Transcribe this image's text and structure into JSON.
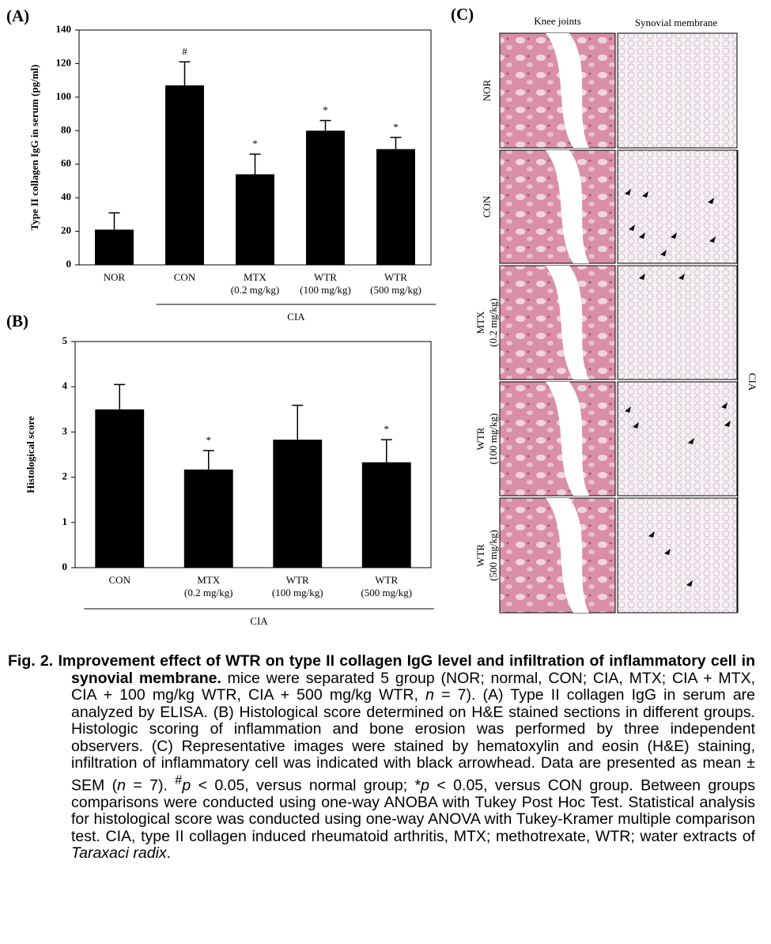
{
  "chart_data": [
    {
      "type": "bar",
      "panel": "(A)",
      "ylabel": "Type II collagen IgG in serum (pg/ml)",
      "categories": [
        [
          "NOR"
        ],
        [
          "CON"
        ],
        [
          "MTX",
          "(0.2 mg/kg)"
        ],
        [
          "WTR",
          "(100 mg/kg)"
        ],
        [
          "WTR",
          "(500 mg/kg)"
        ]
      ],
      "values": [
        21,
        107,
        54,
        80,
        69
      ],
      "errors": [
        10,
        14,
        12,
        6,
        7
      ],
      "markers": [
        null,
        "#",
        "*",
        "*",
        "*"
      ],
      "group_label": "CIA",
      "color": "#000000",
      "ylim": [
        0,
        140
      ],
      "yticks": [
        0,
        20,
        40,
        60,
        80,
        100,
        120,
        140
      ]
    },
    {
      "type": "bar",
      "panel": "(B)",
      "ylabel": "Histological score",
      "categories": [
        [
          "CON"
        ],
        [
          "MTX",
          "(0.2 mg/kg)"
        ],
        [
          "WTR",
          "(100 mg/kg)"
        ],
        [
          "WTR",
          "(500 mg/kg)"
        ]
      ],
      "values": [
        3.5,
        2.17,
        2.83,
        2.33
      ],
      "errors": [
        0.55,
        0.42,
        0.76,
        0.5
      ],
      "markers": [
        null,
        "*",
        null,
        "*"
      ],
      "group_label": "CIA",
      "color": "#000000",
      "ylim": [
        0,
        5
      ],
      "yticks": [
        0,
        1,
        2,
        3,
        4,
        5
      ]
    }
  ],
  "panel_c": {
    "label": "(C)",
    "columns": [
      "Knee joints",
      "Synovial membrane"
    ],
    "rows": [
      [
        "NOR"
      ],
      [
        "CON"
      ],
      [
        "MTX",
        "(0.2 mg/kg)"
      ],
      [
        "WTR",
        "(100 mg/kg)"
      ],
      [
        "WTR",
        "(500 mg/kg)"
      ]
    ],
    "group_label": "CIA"
  },
  "caption": {
    "label": "Fig. 2.",
    "title": "Improvement effect of WTR on type II collagen IgG level and infiltration of inflammatory cell in synovial membrane.",
    "body": [
      " mice were separated 5 group (NOR; normal, CON; CIA, MTX; CIA + MTX, CIA + 100 mg/kg WTR, CIA + 500 mg/kg WTR, ",
      "n",
      " = 7). (A) Type II collagen IgG in serum are analyzed by ELISA. (B) Histological score determined on H&E stained sections in different groups. Histologic scoring of inflammation and bone erosion was performed by three independent observers. (C) Representative images were stained by hematoxylin and eosin (H&E) staining, infiltration of inflammatory cell was indicated with black arrowhead. Data are presented as mean ± SEM (",
      "n",
      " = 7). ",
      "#",
      "p",
      " < 0.05, versus normal group; *",
      "p",
      " < 0.05, versus CON group. Between groups comparisons were conducted using one-way ANOBA with Tukey Post Hoc Test. Statistical analysis for histological score was conducted using one-way ANOVA with Tukey-Kramer multiple comparison test. CIA, type II collagen induced rheumatoid arthritis, MTX; methotrexate, WTR; water extracts of ",
      "Taraxaci radix",
      "."
    ]
  }
}
